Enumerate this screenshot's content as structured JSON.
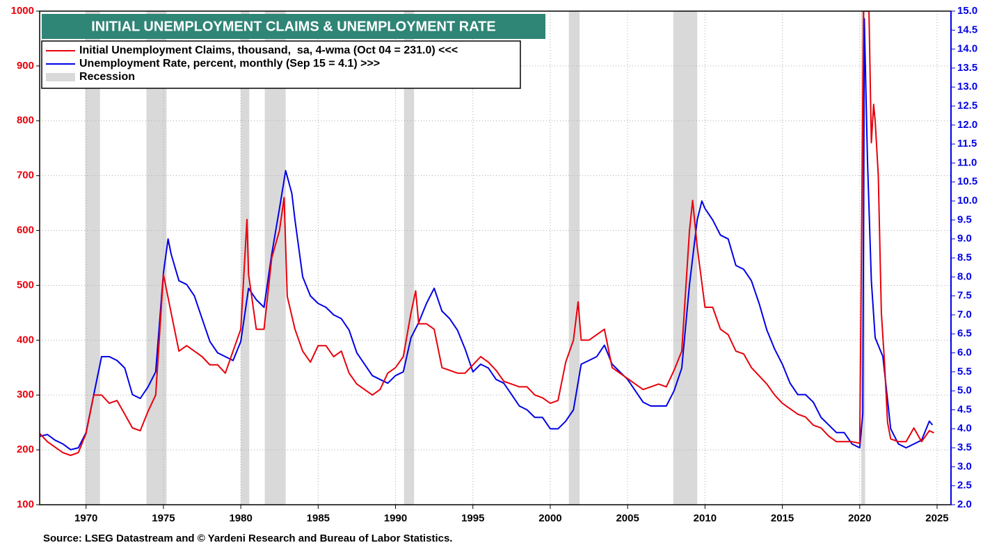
{
  "chart_data": {
    "type": "line",
    "title": "INITIAL UNEMPLOYMENT CLAIMS & UNEMPLOYMENT RATE",
    "source": "Source: LSEG Datastream and © Yardeni Research and Bureau of Labor Statistics.",
    "recession_label": "Recession",
    "recession_color": "#d9d9d9",
    "recessions": [
      [
        1969.95,
        1970.9
      ],
      [
        1973.9,
        1975.2
      ],
      [
        1980.0,
        1980.55
      ],
      [
        1981.55,
        1982.9
      ],
      [
        1990.55,
        1991.2
      ],
      [
        2001.2,
        2001.9
      ],
      [
        2007.95,
        2009.5
      ],
      [
        2020.1,
        2020.35
      ]
    ],
    "grid": true,
    "xlim": [
      1967,
      2025.9
    ],
    "xticks": [
      1970,
      1975,
      1980,
      1985,
      1990,
      1995,
      2000,
      2005,
      2010,
      2015,
      2020,
      2025
    ],
    "ylim": [
      100,
      1000
    ],
    "yticks": [
      100,
      200,
      300,
      400,
      500,
      600,
      700,
      800,
      900,
      1000
    ],
    "y2lim": [
      2,
      15
    ],
    "y2ticks": [
      {
        "value": 2,
        "label": "2.0"
      },
      2.5,
      {
        "value": 3,
        "label": "3.0"
      },
      3.5,
      {
        "value": 4,
        "label": "4.0"
      },
      4.5,
      {
        "value": 5,
        "label": "5.0"
      },
      5.5,
      {
        "value": 6,
        "label": "6.0"
      },
      6.5,
      {
        "value": 7,
        "label": "7.0"
      },
      7.5,
      {
        "value": 8,
        "label": "8.0"
      },
      8.5,
      {
        "value": 9,
        "label": "9.0"
      },
      9.5,
      {
        "value": 10,
        "label": "10.0"
      },
      10.5,
      {
        "value": 11,
        "label": "11.0"
      },
      11.5,
      {
        "value": 12,
        "label": "12.0"
      },
      12.5,
      {
        "value": 13,
        "label": "13.0"
      },
      13.5,
      {
        "value": 14,
        "label": "14.0"
      },
      14.5,
      {
        "value": 15,
        "label": "15.0"
      }
    ],
    "series": [
      {
        "name": "Initial Unemployment Claims, thousand,  sa, 4-wma (Oct 04 = 231.0) <<<",
        "color": "#e8000b",
        "axis": "y",
        "x": [
          1967,
          1967.5,
          1968,
          1968.5,
          1969,
          1969.5,
          1970,
          1970.5,
          1971,
          1971.5,
          1972,
          1972.5,
          1973,
          1973.5,
          1974,
          1974.5,
          1975,
          1975.5,
          1976,
          1976.5,
          1977,
          1977.5,
          1978,
          1978.5,
          1979,
          1979.5,
          1980,
          1980.4,
          1980.5,
          1981,
          1981.5,
          1982,
          1982.5,
          1982.8,
          1983,
          1983.5,
          1984,
          1984.5,
          1985,
          1985.5,
          1986,
          1986.5,
          1987,
          1987.5,
          1988,
          1988.5,
          1989,
          1989.5,
          1990,
          1990.5,
          1991,
          1991.3,
          1991.5,
          1992,
          1992.5,
          1993,
          1993.5,
          1994,
          1994.5,
          1995,
          1995.5,
          1996,
          1996.5,
          1997,
          1997.5,
          1998,
          1998.5,
          1999,
          1999.5,
          2000,
          2000.5,
          2001,
          2001.5,
          2001.8,
          2002,
          2002.5,
          2003,
          2003.5,
          2004,
          2004.5,
          2005,
          2005.5,
          2006,
          2006.5,
          2007,
          2007.5,
          2008,
          2008.5,
          2009,
          2009.2,
          2009.5,
          2010,
          2010.5,
          2011,
          2011.5,
          2012,
          2012.5,
          2013,
          2013.5,
          2014,
          2014.5,
          2015,
          2015.5,
          2016,
          2016.5,
          2017,
          2017.5,
          2018,
          2018.5,
          2019,
          2019.5,
          2020,
          2020.25,
          2020.6,
          2020.75,
          2020.9,
          2021,
          2021.2,
          2021.4,
          2021.6,
          2021.8,
          2022,
          2022.5,
          2023,
          2023.5,
          2024,
          2024.5,
          2024.8
        ],
        "values": [
          230,
          215,
          205,
          195,
          190,
          195,
          230,
          300,
          300,
          285,
          290,
          265,
          240,
          235,
          270,
          300,
          520,
          450,
          380,
          390,
          380,
          370,
          355,
          355,
          340,
          380,
          420,
          620,
          520,
          420,
          420,
          550,
          600,
          660,
          480,
          420,
          380,
          360,
          390,
          390,
          370,
          380,
          340,
          320,
          310,
          300,
          310,
          340,
          350,
          370,
          450,
          490,
          430,
          430,
          420,
          350,
          345,
          340,
          340,
          355,
          370,
          360,
          345,
          325,
          320,
          315,
          315,
          300,
          295,
          285,
          290,
          360,
          400,
          470,
          400,
          400,
          410,
          420,
          350,
          340,
          330,
          320,
          310,
          315,
          320,
          315,
          345,
          380,
          600,
          655,
          570,
          460,
          460,
          420,
          410,
          380,
          375,
          350,
          335,
          320,
          300,
          285,
          275,
          265,
          260,
          245,
          240,
          225,
          215,
          215,
          215,
          212,
          1000,
          1000,
          760,
          830,
          800,
          700,
          450,
          360,
          250,
          220,
          215,
          215,
          240,
          215,
          235,
          231
        ]
      },
      {
        "name": "Unemployment Rate, percent, monthly (Sep 15 = 4.1) >>>",
        "color": "#0000e6",
        "axis": "y2",
        "x": [
          1967,
          1967.5,
          1968,
          1968.5,
          1969,
          1969.5,
          1970,
          1970.5,
          1971,
          1971.5,
          1972,
          1972.5,
          1973,
          1973.5,
          1974,
          1974.5,
          1975,
          1975.3,
          1975.5,
          1976,
          1976.5,
          1977,
          1977.5,
          1978,
          1978.5,
          1979,
          1979.5,
          1980,
          1980.5,
          1981,
          1981.5,
          1982,
          1982.5,
          1982.9,
          1983.3,
          1983.5,
          1984,
          1984.5,
          1985,
          1985.5,
          1986,
          1986.5,
          1987,
          1987.5,
          1988,
          1988.5,
          1989,
          1989.5,
          1990,
          1990.5,
          1991,
          1991.5,
          1992,
          1992.5,
          1993,
          1993.5,
          1994,
          1994.5,
          1995,
          1995.5,
          1996,
          1996.5,
          1997,
          1997.5,
          1998,
          1998.5,
          1999,
          1999.5,
          2000,
          2000.5,
          2001,
          2001.5,
          2002,
          2002.5,
          2003,
          2003.5,
          2004,
          2004.5,
          2005,
          2005.5,
          2006,
          2006.5,
          2007,
          2007.5,
          2008,
          2008.5,
          2009,
          2009.5,
          2009.8,
          2010,
          2010.5,
          2011,
          2011.5,
          2012,
          2012.5,
          2013,
          2013.5,
          2014,
          2014.5,
          2015,
          2015.5,
          2016,
          2016.5,
          2017,
          2017.5,
          2018,
          2018.5,
          2019,
          2019.5,
          2020,
          2020.2,
          2020.3,
          2020.5,
          2020.75,
          2021,
          2021.5,
          2022,
          2022.5,
          2023,
          2023.5,
          2024,
          2024.5,
          2024.7
        ],
        "values": [
          3.8,
          3.85,
          3.7,
          3.6,
          3.45,
          3.5,
          3.9,
          4.9,
          5.9,
          5.9,
          5.8,
          5.6,
          4.9,
          4.8,
          5.1,
          5.5,
          8.1,
          9.0,
          8.6,
          7.9,
          7.8,
          7.5,
          6.9,
          6.3,
          6.0,
          5.9,
          5.8,
          6.3,
          7.7,
          7.4,
          7.2,
          8.6,
          9.8,
          10.8,
          10.2,
          9.5,
          8.0,
          7.5,
          7.3,
          7.2,
          7.0,
          6.9,
          6.6,
          6.0,
          5.7,
          5.4,
          5.3,
          5.2,
          5.4,
          5.5,
          6.4,
          6.8,
          7.3,
          7.7,
          7.1,
          6.9,
          6.6,
          6.1,
          5.5,
          5.7,
          5.6,
          5.3,
          5.2,
          4.9,
          4.6,
          4.5,
          4.3,
          4.3,
          4.0,
          4.0,
          4.2,
          4.5,
          5.7,
          5.8,
          5.9,
          6.2,
          5.7,
          5.5,
          5.3,
          5.0,
          4.7,
          4.6,
          4.6,
          4.6,
          5.0,
          5.6,
          7.8,
          9.5,
          10.0,
          9.8,
          9.5,
          9.1,
          9.0,
          8.3,
          8.2,
          7.9,
          7.3,
          6.6,
          6.1,
          5.7,
          5.2,
          4.9,
          4.9,
          4.7,
          4.3,
          4.1,
          3.9,
          3.9,
          3.6,
          3.5,
          4.4,
          14.8,
          11.1,
          7.9,
          6.4,
          5.9,
          4.0,
          3.6,
          3.5,
          3.6,
          3.7,
          4.2,
          4.1
        ]
      }
    ]
  }
}
